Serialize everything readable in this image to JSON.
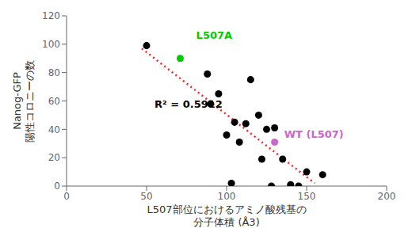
{
  "chart_data": {
    "type": "scatter",
    "xlabel": "L507部位におけるアミノ酸残基の\n分子体積 (Å3)",
    "ylabel": "Nanog-GFP\n陽性コロニーの数",
    "xlim": [
      0,
      200
    ],
    "ylim": [
      0,
      120
    ],
    "xticks": [
      0,
      50,
      100,
      150,
      200
    ],
    "yticks": [
      0,
      20,
      40,
      60,
      80,
      100,
      120
    ],
    "grid": false,
    "series": [
      {
        "type": "scatter",
        "color": "#000000",
        "x": [
          50,
          88,
          90,
          95,
          100,
          105,
          108,
          112,
          115,
          120,
          122,
          125,
          130,
          135,
          140,
          145,
          150,
          160,
          103,
          128
        ],
        "values": [
          99,
          79,
          58,
          65,
          36,
          45,
          31,
          44,
          75,
          50,
          19,
          40,
          41,
          19,
          1,
          0,
          10,
          8,
          2,
          0
        ]
      },
      {
        "type": "scatter",
        "color": "#00cc00",
        "x": [
          71
        ],
        "values": [
          90
        ]
      },
      {
        "type": "scatter",
        "color": "#cc66cc",
        "x": [
          130
        ],
        "values": [
          31
        ]
      },
      {
        "type": "line",
        "color": "#ff2222",
        "line_style": "dotted",
        "x": [
          47,
          155
        ],
        "values": [
          97,
          2
        ]
      }
    ],
    "annotations": [
      {
        "text": "R² = 0.5912",
        "x": 55,
        "y": 55,
        "color": "#000000"
      },
      {
        "text": "L507A",
        "x": 81,
        "y": 104,
        "color": "#00cc00"
      },
      {
        "text": "WT (L507)",
        "x": 136,
        "y": 34,
        "color": "#cc66cc"
      }
    ]
  }
}
